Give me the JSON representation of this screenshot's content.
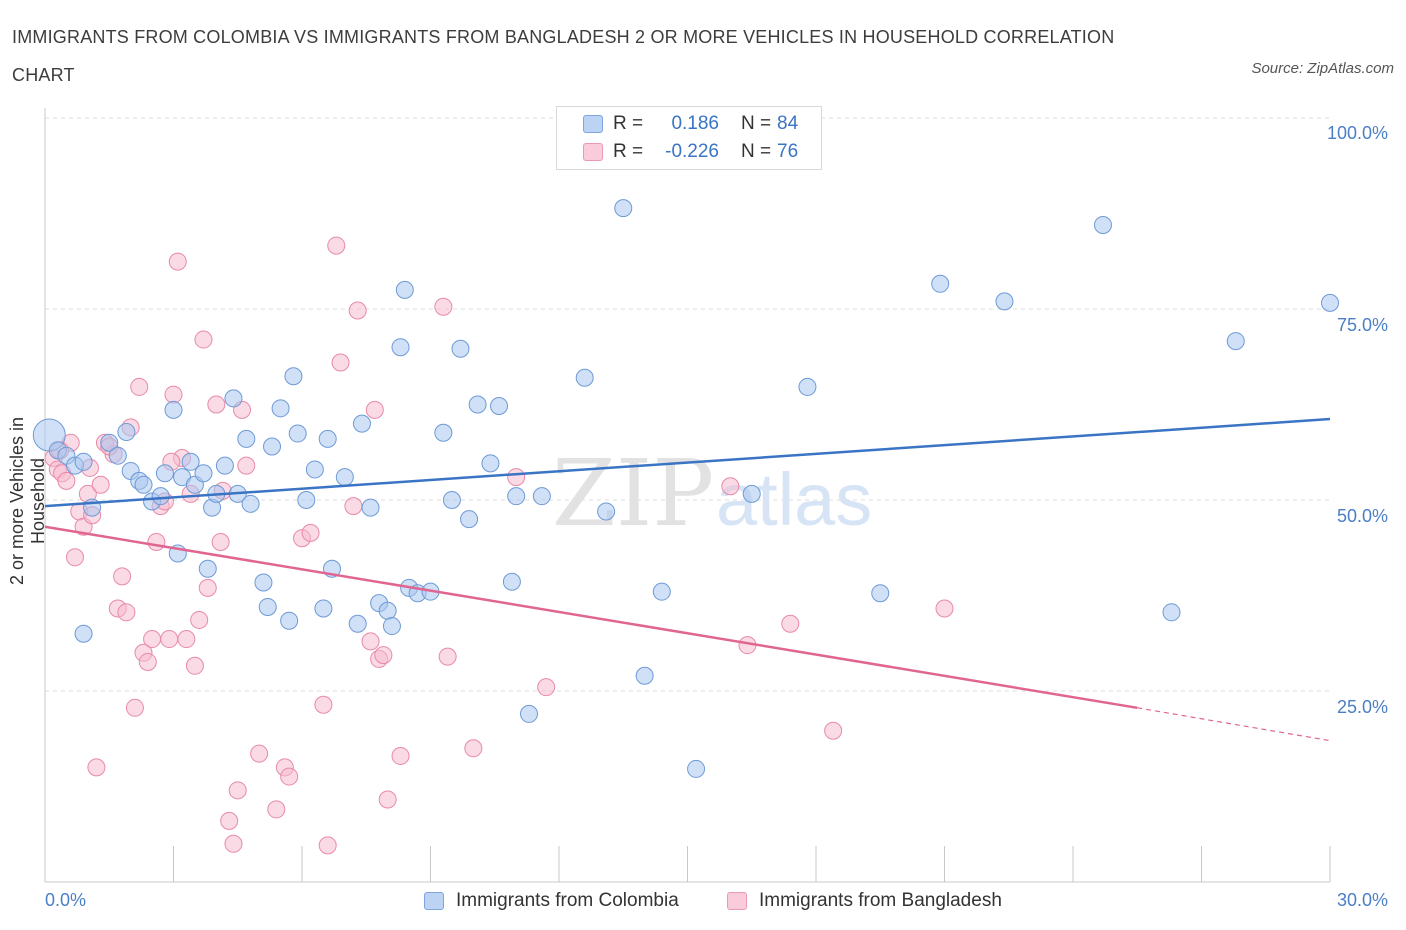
{
  "title": "IMMIGRANTS FROM COLOMBIA VS IMMIGRANTS FROM BANGLADESH 2 OR MORE VEHICLES IN HOUSEHOLD CORRELATION CHART",
  "source": "Source: ZipAtlas.com",
  "watermark": {
    "zip": "ZIP",
    "atlas": "atlas"
  },
  "legend": {
    "row1": {
      "r_label": "R =",
      "r_value": "0.186",
      "n_label": "N =",
      "n_value": "84"
    },
    "row2": {
      "r_label": "R =",
      "r_value": "-0.226",
      "n_label": "N =",
      "n_value": "76"
    }
  },
  "colors": {
    "blue_fill": "#a9c6ef",
    "blue_stroke": "#6e9ad6",
    "blue_line": "#3a74c4",
    "pink_fill": "#f6bcd0",
    "pink_stroke": "#e88aa9",
    "pink_line": "#e06591",
    "tick_color": "#4a7fc6"
  },
  "chart_data": {
    "type": "scatter",
    "ylabel": "2 or more Vehicles in Household",
    "x_ticks": {
      "min_label": "0.0%",
      "max_label": "30.0%"
    },
    "y_ticks": [
      "100.0%",
      "75.0%",
      "50.0%",
      "25.0%"
    ],
    "xlim": [
      0,
      30
    ],
    "ylim": [
      0,
      100
    ],
    "grid": true,
    "legend_position": "top-center and bottom",
    "series": [
      {
        "name": "Immigrants from Colombia",
        "color": "#a9c6ef",
        "trend": {
          "x": [
            0.0,
            30.0
          ],
          "y": [
            49.2,
            60.6
          ]
        },
        "points": [
          [
            0.1,
            58.5
          ],
          [
            0.3,
            56.5
          ],
          [
            0.5,
            55.8
          ],
          [
            0.7,
            54.5
          ],
          [
            0.9,
            55.0
          ],
          [
            1.1,
            49.0
          ],
          [
            0.9,
            32.5
          ],
          [
            1.5,
            57.5
          ],
          [
            1.7,
            55.8
          ],
          [
            1.9,
            58.9
          ],
          [
            2.0,
            53.8
          ],
          [
            2.2,
            52.5
          ],
          [
            2.3,
            52.0
          ],
          [
            2.5,
            49.8
          ],
          [
            2.7,
            50.5
          ],
          [
            2.8,
            53.5
          ],
          [
            3.0,
            61.8
          ],
          [
            3.1,
            43.0
          ],
          [
            3.2,
            53.0
          ],
          [
            3.4,
            55.0
          ],
          [
            3.5,
            52.0
          ],
          [
            3.7,
            53.5
          ],
          [
            3.8,
            41.0
          ],
          [
            3.9,
            49.0
          ],
          [
            4.0,
            50.8
          ],
          [
            4.2,
            54.5
          ],
          [
            4.4,
            63.3
          ],
          [
            4.5,
            50.8
          ],
          [
            4.7,
            58.0
          ],
          [
            4.8,
            49.5
          ],
          [
            5.1,
            39.2
          ],
          [
            5.3,
            57.0
          ],
          [
            5.5,
            62.0
          ],
          [
            5.2,
            36.0
          ],
          [
            5.7,
            34.2
          ],
          [
            5.8,
            66.2
          ],
          [
            5.9,
            58.7
          ],
          [
            6.1,
            50.0
          ],
          [
            6.3,
            54.0
          ],
          [
            6.5,
            35.8
          ],
          [
            6.6,
            58.0
          ],
          [
            6.7,
            41.0
          ],
          [
            7.0,
            53.0
          ],
          [
            7.3,
            33.8
          ],
          [
            7.4,
            60.0
          ],
          [
            7.6,
            49.0
          ],
          [
            7.8,
            36.5
          ],
          [
            8.0,
            35.5
          ],
          [
            8.1,
            33.5
          ],
          [
            8.3,
            70.0
          ],
          [
            8.4,
            77.5
          ],
          [
            8.5,
            38.5
          ],
          [
            8.7,
            37.8
          ],
          [
            9.0,
            38.0
          ],
          [
            9.3,
            58.8
          ],
          [
            9.5,
            50.0
          ],
          [
            9.7,
            69.8
          ],
          [
            9.9,
            47.5
          ],
          [
            10.1,
            62.5
          ],
          [
            10.4,
            54.8
          ],
          [
            10.6,
            62.3
          ],
          [
            10.9,
            39.3
          ],
          [
            11.0,
            50.5
          ],
          [
            11.3,
            22.0
          ],
          [
            11.6,
            50.5
          ],
          [
            12.6,
            66.0
          ],
          [
            13.1,
            48.5
          ],
          [
            13.5,
            88.2
          ],
          [
            14.0,
            27.0
          ],
          [
            14.4,
            38.0
          ],
          [
            15.2,
            14.8
          ],
          [
            16.5,
            50.8
          ],
          [
            17.8,
            64.8
          ],
          [
            19.5,
            37.8
          ],
          [
            20.9,
            78.3
          ],
          [
            22.4,
            76.0
          ],
          [
            24.7,
            86.0
          ],
          [
            26.3,
            35.3
          ],
          [
            27.8,
            70.8
          ],
          [
            30.0,
            75.8
          ]
        ]
      },
      {
        "name": "Immigrants from Bangladesh",
        "color": "#f6bcd0",
        "trend": {
          "x": [
            0.0,
            25.5
          ],
          "y": [
            46.5,
            22.8
          ]
        },
        "trend_dashed": {
          "x": [
            25.5,
            30.0
          ],
          "y": [
            22.8,
            18.5
          ]
        },
        "points": [
          [
            0.2,
            55.5
          ],
          [
            0.3,
            54.0
          ],
          [
            0.4,
            53.5
          ],
          [
            0.5,
            52.5
          ],
          [
            0.6,
            57.5
          ],
          [
            0.7,
            42.5
          ],
          [
            0.8,
            48.5
          ],
          [
            0.9,
            46.5
          ],
          [
            1.0,
            50.8
          ],
          [
            1.1,
            48.0
          ],
          [
            1.2,
            15.0
          ],
          [
            1.3,
            52.0
          ],
          [
            1.4,
            57.5
          ],
          [
            1.6,
            56.0
          ],
          [
            1.7,
            35.8
          ],
          [
            1.8,
            40.0
          ],
          [
            1.9,
            35.3
          ],
          [
            2.0,
            59.5
          ],
          [
            2.1,
            22.8
          ],
          [
            2.2,
            64.8
          ],
          [
            2.3,
            30.0
          ],
          [
            2.4,
            28.8
          ],
          [
            2.5,
            31.8
          ],
          [
            2.6,
            44.5
          ],
          [
            2.7,
            49.2
          ],
          [
            2.8,
            49.8
          ],
          [
            2.9,
            31.8
          ],
          [
            3.0,
            63.8
          ],
          [
            3.1,
            81.2
          ],
          [
            3.2,
            55.5
          ],
          [
            3.3,
            31.8
          ],
          [
            3.4,
            50.8
          ],
          [
            3.5,
            28.3
          ],
          [
            3.6,
            34.3
          ],
          [
            3.7,
            71.0
          ],
          [
            3.8,
            38.5
          ],
          [
            4.0,
            62.5
          ],
          [
            4.1,
            44.5
          ],
          [
            4.3,
            8.0
          ],
          [
            4.4,
            5.0
          ],
          [
            4.5,
            12.0
          ],
          [
            4.6,
            61.8
          ],
          [
            4.7,
            54.5
          ],
          [
            5.0,
            16.8
          ],
          [
            5.4,
            9.5
          ],
          [
            5.6,
            15.0
          ],
          [
            5.7,
            13.8
          ],
          [
            6.0,
            45.0
          ],
          [
            6.2,
            45.7
          ],
          [
            6.5,
            23.2
          ],
          [
            6.6,
            4.8
          ],
          [
            6.8,
            83.3
          ],
          [
            6.9,
            68.0
          ],
          [
            7.2,
            49.2
          ],
          [
            7.3,
            74.8
          ],
          [
            7.6,
            31.5
          ],
          [
            7.7,
            61.8
          ],
          [
            7.8,
            29.2
          ],
          [
            7.9,
            29.7
          ],
          [
            8.0,
            10.8
          ],
          [
            8.3,
            16.5
          ],
          [
            9.3,
            75.3
          ],
          [
            9.4,
            29.5
          ],
          [
            10.0,
            17.5
          ],
          [
            11.0,
            53.0
          ],
          [
            11.7,
            25.5
          ],
          [
            16.0,
            51.8
          ],
          [
            16.4,
            31.0
          ],
          [
            17.4,
            33.8
          ],
          [
            18.4,
            19.8
          ],
          [
            21.0,
            35.8
          ],
          [
            1.5,
            57.0
          ],
          [
            0.35,
            56.5
          ],
          [
            2.95,
            55.0
          ],
          [
            4.15,
            51.2
          ],
          [
            1.05,
            54.2
          ]
        ]
      }
    ]
  },
  "bottom_legend": {
    "item1": "Immigrants from Colombia",
    "item2": "Immigrants from Bangladesh"
  }
}
